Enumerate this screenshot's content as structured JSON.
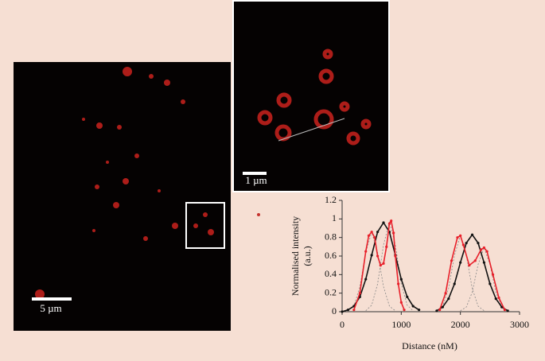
{
  "images": {
    "main_scale_label": "5 µm",
    "inset_scale_label": "1 µm"
  },
  "chart_data": {
    "type": "line",
    "xlabel": "Distance (nM)",
    "ylabel": [
      "Normalised intensity",
      "(a.u.)"
    ],
    "xlim": [
      0,
      3000
    ],
    "xticks": [
      0,
      1000,
      2000,
      3000
    ],
    "ylim": [
      0,
      1.2
    ],
    "yticks": [
      0,
      0.2,
      0.4,
      0.6,
      0.8,
      1,
      1.2
    ],
    "grid": false,
    "series": [
      {
        "color": "#888888",
        "dashed": true,
        "marker": false,
        "x": [
          100,
          200,
          300,
          400,
          500,
          600,
          700,
          800,
          900
        ],
        "values": [
          0.01,
          0.06,
          0.27,
          0.64,
          0.86,
          0.64,
          0.27,
          0.06,
          0.01
        ]
      },
      {
        "color": "#888888",
        "dashed": true,
        "marker": false,
        "x": [
          400,
          500,
          600,
          700,
          800,
          900,
          1000,
          1100,
          1200
        ],
        "values": [
          0.01,
          0.07,
          0.3,
          0.72,
          0.97,
          0.72,
          0.3,
          0.07,
          0.01
        ]
      },
      {
        "color": "#888888",
        "dashed": true,
        "marker": false,
        "x": [
          1600,
          1700,
          1800,
          1900,
          2000,
          2100,
          2200,
          2300,
          2400
        ],
        "values": [
          0.01,
          0.06,
          0.25,
          0.61,
          0.82,
          0.61,
          0.25,
          0.06,
          0.01
        ]
      },
      {
        "color": "#888888",
        "dashed": true,
        "marker": false,
        "x": [
          2000,
          2100,
          2200,
          2300,
          2400,
          2500,
          2600,
          2700,
          2800
        ],
        "values": [
          0.01,
          0.05,
          0.21,
          0.51,
          0.69,
          0.51,
          0.21,
          0.05,
          0.01
        ]
      },
      {
        "color": "#111111",
        "dashed": false,
        "marker": true,
        "x": [
          0,
          100,
          200,
          300,
          400,
          500,
          600,
          700,
          800,
          900,
          1000,
          1100,
          1200,
          1300
        ],
        "values": [
          0,
          0.02,
          0.06,
          0.16,
          0.35,
          0.61,
          0.86,
          0.96,
          0.86,
          0.61,
          0.35,
          0.16,
          0.06,
          0.02
        ]
      },
      {
        "color": "#111111",
        "dashed": false,
        "marker": true,
        "x": [
          1600,
          1700,
          1800,
          1900,
          2000,
          2100,
          2200,
          2300,
          2400,
          2500,
          2600,
          2700,
          2800
        ],
        "values": [
          0.01,
          0.05,
          0.14,
          0.3,
          0.53,
          0.74,
          0.83,
          0.74,
          0.53,
          0.3,
          0.14,
          0.05,
          0.01
        ]
      },
      {
        "color": "#e8202a",
        "dashed": false,
        "marker": true,
        "x": [
          200,
          300,
          400,
          450,
          500,
          550,
          600,
          650,
          700,
          750,
          800,
          830,
          870,
          900,
          950,
          1000,
          1050
        ],
        "values": [
          0.02,
          0.2,
          0.65,
          0.82,
          0.86,
          0.8,
          0.6,
          0.5,
          0.52,
          0.7,
          0.95,
          0.98,
          0.85,
          0.6,
          0.3,
          0.1,
          0.02
        ]
      },
      {
        "color": "#e8202a",
        "dashed": false,
        "marker": true,
        "x": [
          1650,
          1750,
          1850,
          1950,
          2000,
          2050,
          2150,
          2250,
          2350,
          2400,
          2450,
          2550,
          2650,
          2750
        ],
        "values": [
          0.02,
          0.2,
          0.55,
          0.8,
          0.82,
          0.72,
          0.5,
          0.55,
          0.67,
          0.69,
          0.65,
          0.4,
          0.15,
          0.02
        ]
      }
    ]
  }
}
